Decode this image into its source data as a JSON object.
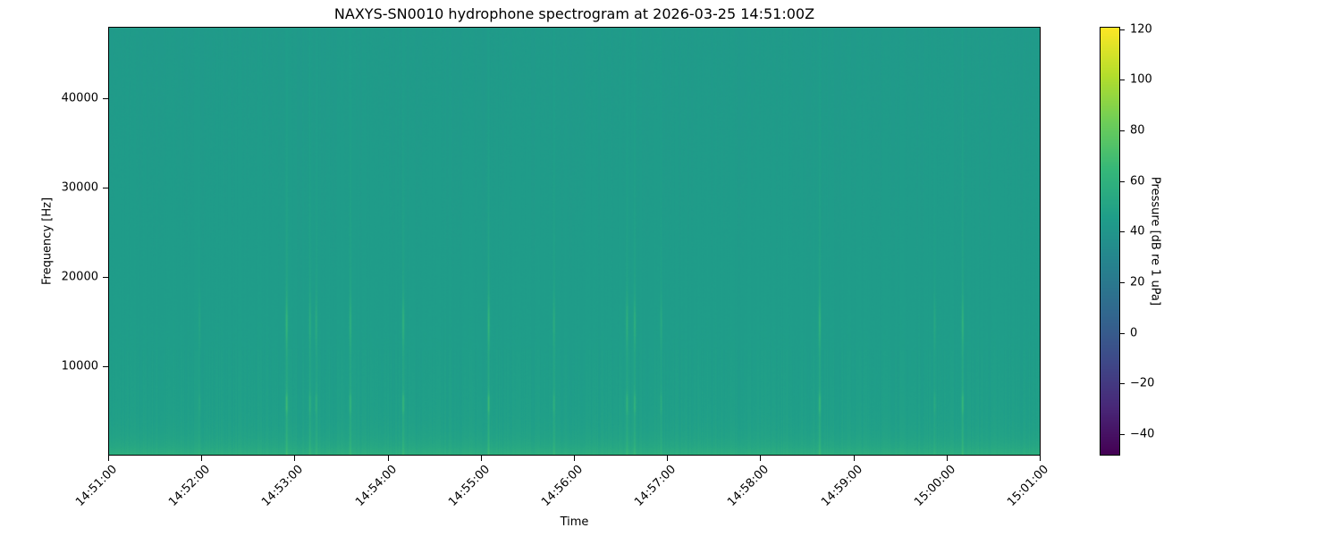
{
  "chart_data": {
    "type": "heatmap",
    "title": "NAXYS-SN0010 hydrophone spectrogram at 2026-03-25 14:51:00Z",
    "xlabel": "Time",
    "ylabel": "Frequency [Hz]",
    "colorbar_label": "Pressure [dB re 1 uPa]",
    "colormap": "viridis",
    "xlim": [
      "14:51:00",
      "15:01:00"
    ],
    "ylim": [
      0,
      48000
    ],
    "clim": [
      -48.5,
      121
    ],
    "x_ticks": [
      "14:51:00",
      "14:52:00",
      "14:53:00",
      "14:54:00",
      "14:55:00",
      "14:56:00",
      "14:57:00",
      "14:58:00",
      "14:59:00",
      "15:00:00",
      "15:01:00"
    ],
    "y_ticks": [
      10000,
      20000,
      30000,
      40000
    ],
    "colorbar_ticks": [
      -40,
      -20,
      0,
      20,
      40,
      60,
      80,
      100,
      120
    ],
    "background_level_db": 45,
    "low_frequency_level_db": 58,
    "transient_band_peaks_hz": [
      6000,
      15000
    ],
    "transients": [
      {
        "time": "14:51:58",
        "peak_db": 52
      },
      {
        "time": "14:52:54",
        "peak_db": 68
      },
      {
        "time": "14:53:09",
        "peak_db": 58
      },
      {
        "time": "14:53:13",
        "peak_db": 58
      },
      {
        "time": "14:53:35",
        "peak_db": 62
      },
      {
        "time": "14:54:09",
        "peak_db": 64
      },
      {
        "time": "14:55:04",
        "peak_db": 68
      },
      {
        "time": "14:55:46",
        "peak_db": 58
      },
      {
        "time": "14:56:33",
        "peak_db": 62
      },
      {
        "time": "14:56:38",
        "peak_db": 62
      },
      {
        "time": "14:56:55",
        "peak_db": 56
      },
      {
        "time": "14:58:37",
        "peak_db": 66
      },
      {
        "time": "14:59:51",
        "peak_db": 55
      },
      {
        "time": "15:00:09",
        "peak_db": 64
      }
    ]
  }
}
